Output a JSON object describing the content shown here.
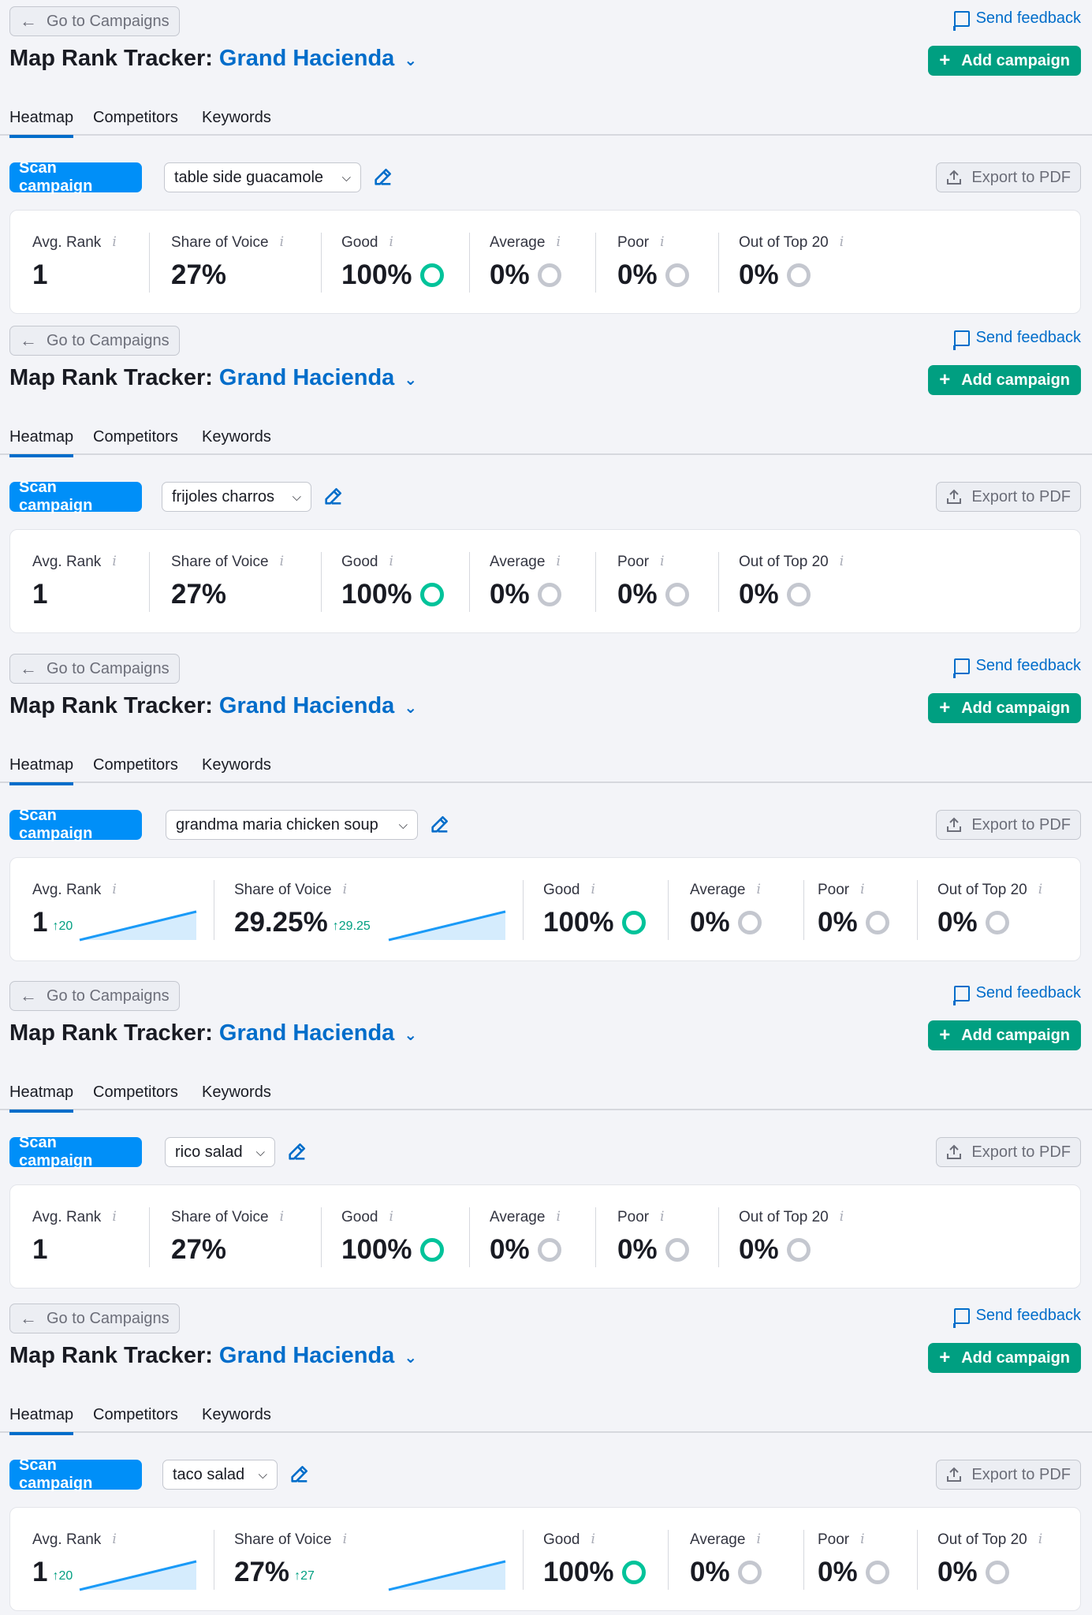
{
  "common": {
    "back_label": "Go to Campaigns",
    "feedback_label": "Send feedback",
    "title_prefix": "Map Rank Tracker:",
    "brand": "Grand Hacienda",
    "add_label": "Add campaign",
    "tabs": [
      "Heatmap",
      "Competitors",
      "Keywords"
    ],
    "scan_label": "Scan campaign",
    "export_label": "Export to PDF",
    "stat_labels": {
      "avg_rank": "Avg. Rank",
      "sov": "Share of Voice",
      "good": "Good",
      "average": "Average",
      "poor": "Poor",
      "out": "Out of Top 20"
    },
    "info_glyph": "i",
    "colors": {
      "brand_blue": "#006dca",
      "green": "#009f81",
      "scan_blue": "#008ff8",
      "ring_good": "#00c39a",
      "ring_neutral": "#c4c7cf"
    }
  },
  "sections": [
    {
      "keyword": "table side guacamole",
      "avg_rank": "1",
      "sov": "27%",
      "good": "100%",
      "average": "0%",
      "poor": "0%",
      "out": "0%"
    },
    {
      "keyword": "frijoles charros",
      "avg_rank": "1",
      "sov": "27%",
      "good": "100%",
      "average": "0%",
      "poor": "0%",
      "out": "0%"
    },
    {
      "keyword": "grandma maria chicken soup",
      "avg_rank": "1",
      "avg_delta": "↑20",
      "sov": "29.25%",
      "sov_delta": "↑29.25",
      "good": "100%",
      "average": "0%",
      "poor": "0%",
      "out": "0%"
    },
    {
      "keyword": "rico salad",
      "avg_rank": "1",
      "sov": "27%",
      "good": "100%",
      "average": "0%",
      "poor": "0%",
      "out": "0%"
    },
    {
      "keyword": "taco salad",
      "avg_rank": "1",
      "avg_delta": "↑20",
      "sov": "27%",
      "sov_delta": "↑27",
      "good": "100%",
      "average": "0%",
      "poor": "0%",
      "out": "0%"
    }
  ]
}
